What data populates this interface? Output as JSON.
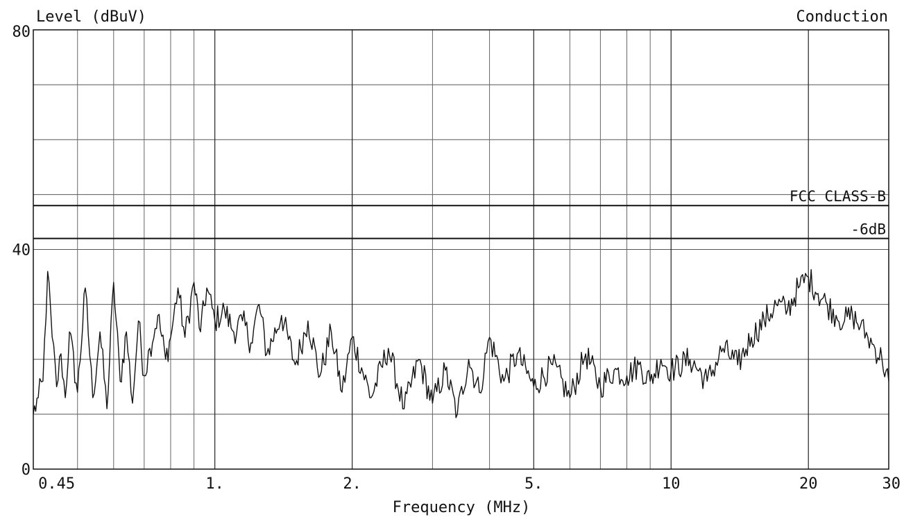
{
  "chart_data": {
    "type": "line",
    "title": "Conduction",
    "ylabel": "Level (dBuV)",
    "xlabel": "Frequency (MHz)",
    "x_scale": "log",
    "xlim": [
      0.4,
      30
    ],
    "ylim": [
      0,
      80
    ],
    "grid": true,
    "y_tick_labels": [
      "0",
      "40",
      "80"
    ],
    "x_tick_labels": [
      {
        "value": 0.45,
        "label": "0.45"
      },
      {
        "value": 1,
        "label": "1."
      },
      {
        "value": 2,
        "label": "2."
      },
      {
        "value": 5,
        "label": "5."
      },
      {
        "value": 10,
        "label": "10"
      },
      {
        "value": 20,
        "label": "20"
      },
      {
        "value": 30,
        "label": "30"
      }
    ],
    "limit_lines": [
      {
        "name": "FCC CLASS-B",
        "value": 48
      },
      {
        "name": "-6dB",
        "value": 42
      }
    ],
    "series": [
      {
        "x": [
          0.4,
          0.41,
          0.42,
          0.43,
          0.44,
          0.45,
          0.46,
          0.47,
          0.48,
          0.5,
          0.52,
          0.54,
          0.56,
          0.58,
          0.6,
          0.62,
          0.64,
          0.66,
          0.68,
          0.7,
          0.72,
          0.75,
          0.78,
          0.8,
          0.83,
          0.86,
          0.9,
          0.93,
          0.96,
          1.0,
          1.05,
          1.1,
          1.15,
          1.2,
          1.25,
          1.3,
          1.4,
          1.5,
          1.6,
          1.7,
          1.8,
          1.9,
          2.0,
          2.2,
          2.4,
          2.6,
          2.8,
          3.0,
          3.2,
          3.4,
          3.6,
          3.8,
          4.0,
          4.3,
          4.6,
          5.0,
          5.5,
          6.0,
          6.5,
          7.0,
          7.5,
          8.0,
          8.5,
          9.0,
          9.5,
          10.0,
          11.0,
          12.0,
          13.0,
          14.0,
          15.0,
          16.0,
          17.0,
          18.0,
          19.0,
          20.0,
          21.0,
          22.0,
          23.0,
          24.0,
          25.0,
          26.0,
          27.0,
          28.0,
          29.0,
          30.0
        ],
        "y": [
          10,
          13,
          16,
          36,
          24,
          15,
          21,
          13,
          25,
          14,
          33,
          13,
          25,
          11,
          34,
          16,
          25,
          12,
          27,
          17,
          22,
          28,
          20,
          24,
          33,
          24,
          34,
          25,
          33,
          27,
          29,
          25,
          27,
          23,
          30,
          21,
          28,
          19,
          27,
          17,
          25,
          14,
          24,
          13,
          22,
          11,
          20,
          12,
          18,
          10,
          20,
          14,
          24,
          16,
          21,
          15,
          19,
          13,
          21,
          15,
          18,
          17,
          19,
          16,
          20,
          18,
          20,
          16,
          22,
          19,
          24,
          27,
          30,
          29,
          33,
          35,
          32,
          30,
          28,
          27,
          28,
          26,
          24,
          22,
          20,
          16
        ]
      }
    ]
  }
}
